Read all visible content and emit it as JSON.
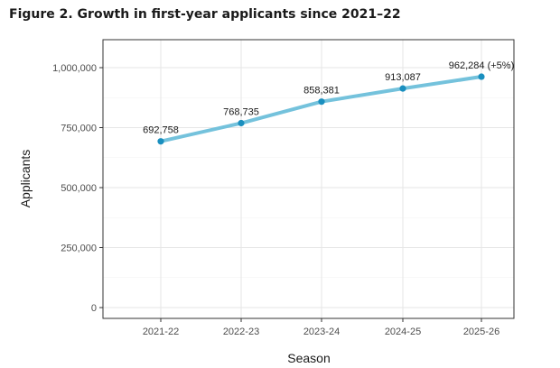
{
  "chart_data": {
    "type": "line",
    "title": "Figure 2. Growth in first-year applicants since 2021–22",
    "xlabel": "Season",
    "ylabel": "Applicants",
    "categories": [
      "2021-22",
      "2022-23",
      "2023-24",
      "2024-25",
      "2025-26"
    ],
    "series": [
      {
        "name": "Applicants",
        "values": [
          692758,
          768735,
          858381,
          913087,
          962284
        ],
        "labels": [
          "692,758",
          "768,735",
          "858,381",
          "913,087",
          "962,284 (+5%)"
        ]
      }
    ],
    "ylim": [
      0,
      1000000
    ],
    "yticks": [
      0,
      250000,
      500000,
      750000,
      1000000
    ],
    "ytick_labels": [
      "0",
      "250,000",
      "500,000",
      "750,000",
      "1,000,000"
    ],
    "grid": true,
    "legend": "none",
    "colors": {
      "line": "#74c2dc",
      "point": "#1a8fbf",
      "grid": "#e6e6e6",
      "frame": "#333333"
    }
  }
}
